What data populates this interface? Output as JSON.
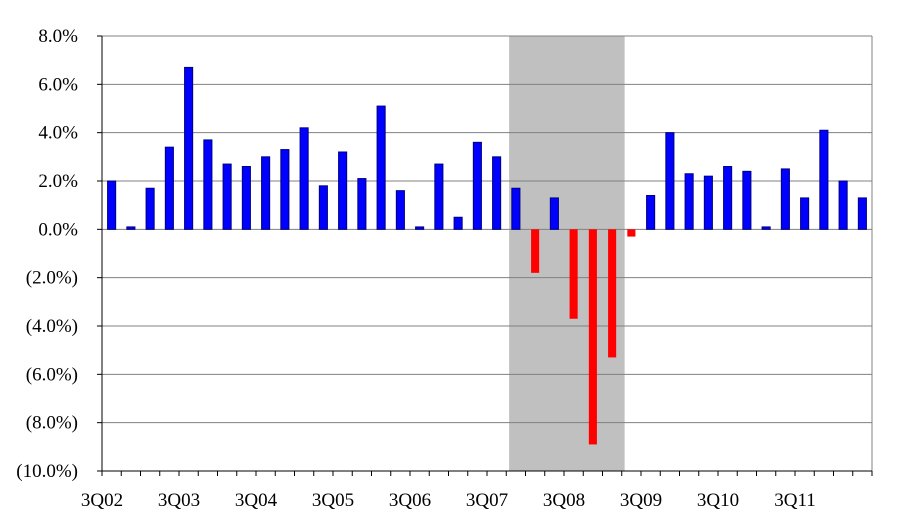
{
  "chart_data": {
    "type": "bar",
    "title": "",
    "xlabel": "",
    "ylabel": "",
    "ylim": [
      -10,
      8
    ],
    "y_ticks": [
      8,
      6,
      4,
      2,
      0,
      -2,
      -4,
      -6,
      -8,
      -10
    ],
    "y_tick_labels": [
      "8.0%",
      "6.0%",
      "4.0%",
      "2.0%",
      "0.0%",
      "(2.0%)",
      "(4.0%)",
      "(6.0%)",
      "(8.0%)",
      "(10.0%)"
    ],
    "grid": "horizontal",
    "categories": [
      "3Q02",
      "4Q02",
      "1Q03",
      "2Q03",
      "3Q03",
      "4Q03",
      "1Q04",
      "2Q04",
      "3Q04",
      "4Q04",
      "1Q05",
      "2Q05",
      "3Q05",
      "4Q05",
      "1Q06",
      "2Q06",
      "3Q06",
      "4Q06",
      "1Q07",
      "2Q07",
      "3Q07",
      "4Q07",
      "1Q08",
      "2Q08",
      "3Q08",
      "4Q08",
      "1Q09",
      "2Q09",
      "3Q09",
      "4Q09",
      "1Q10",
      "2Q10",
      "3Q10",
      "4Q10",
      "1Q11",
      "2Q11",
      "3Q11",
      "4Q11",
      "1Q12",
      "2Q12"
    ],
    "x_tick_labels": [
      "3Q02",
      "3Q03",
      "3Q04",
      "3Q05",
      "3Q06",
      "3Q07",
      "3Q08",
      "3Q09",
      "3Q10",
      "3Q11"
    ],
    "values": [
      2.0,
      0.1,
      1.7,
      3.4,
      6.7,
      3.7,
      2.7,
      2.6,
      3.0,
      3.3,
      4.2,
      1.8,
      3.2,
      2.1,
      5.1,
      1.6,
      0.1,
      2.7,
      0.5,
      3.6,
      3.0,
      1.7,
      -1.8,
      1.3,
      -3.7,
      -8.9,
      -5.3,
      -0.3,
      1.4,
      4.0,
      2.3,
      2.2,
      2.6,
      2.4,
      0.1,
      2.5,
      1.3,
      4.1,
      2.0,
      1.3
    ],
    "colors": {
      "positive": "#0000ff",
      "negative": "#ff0000",
      "recession_band": "#c0c0c0",
      "grid": "#808080"
    },
    "shaded_region": {
      "from": "4Q07",
      "to": "2Q09"
    }
  }
}
